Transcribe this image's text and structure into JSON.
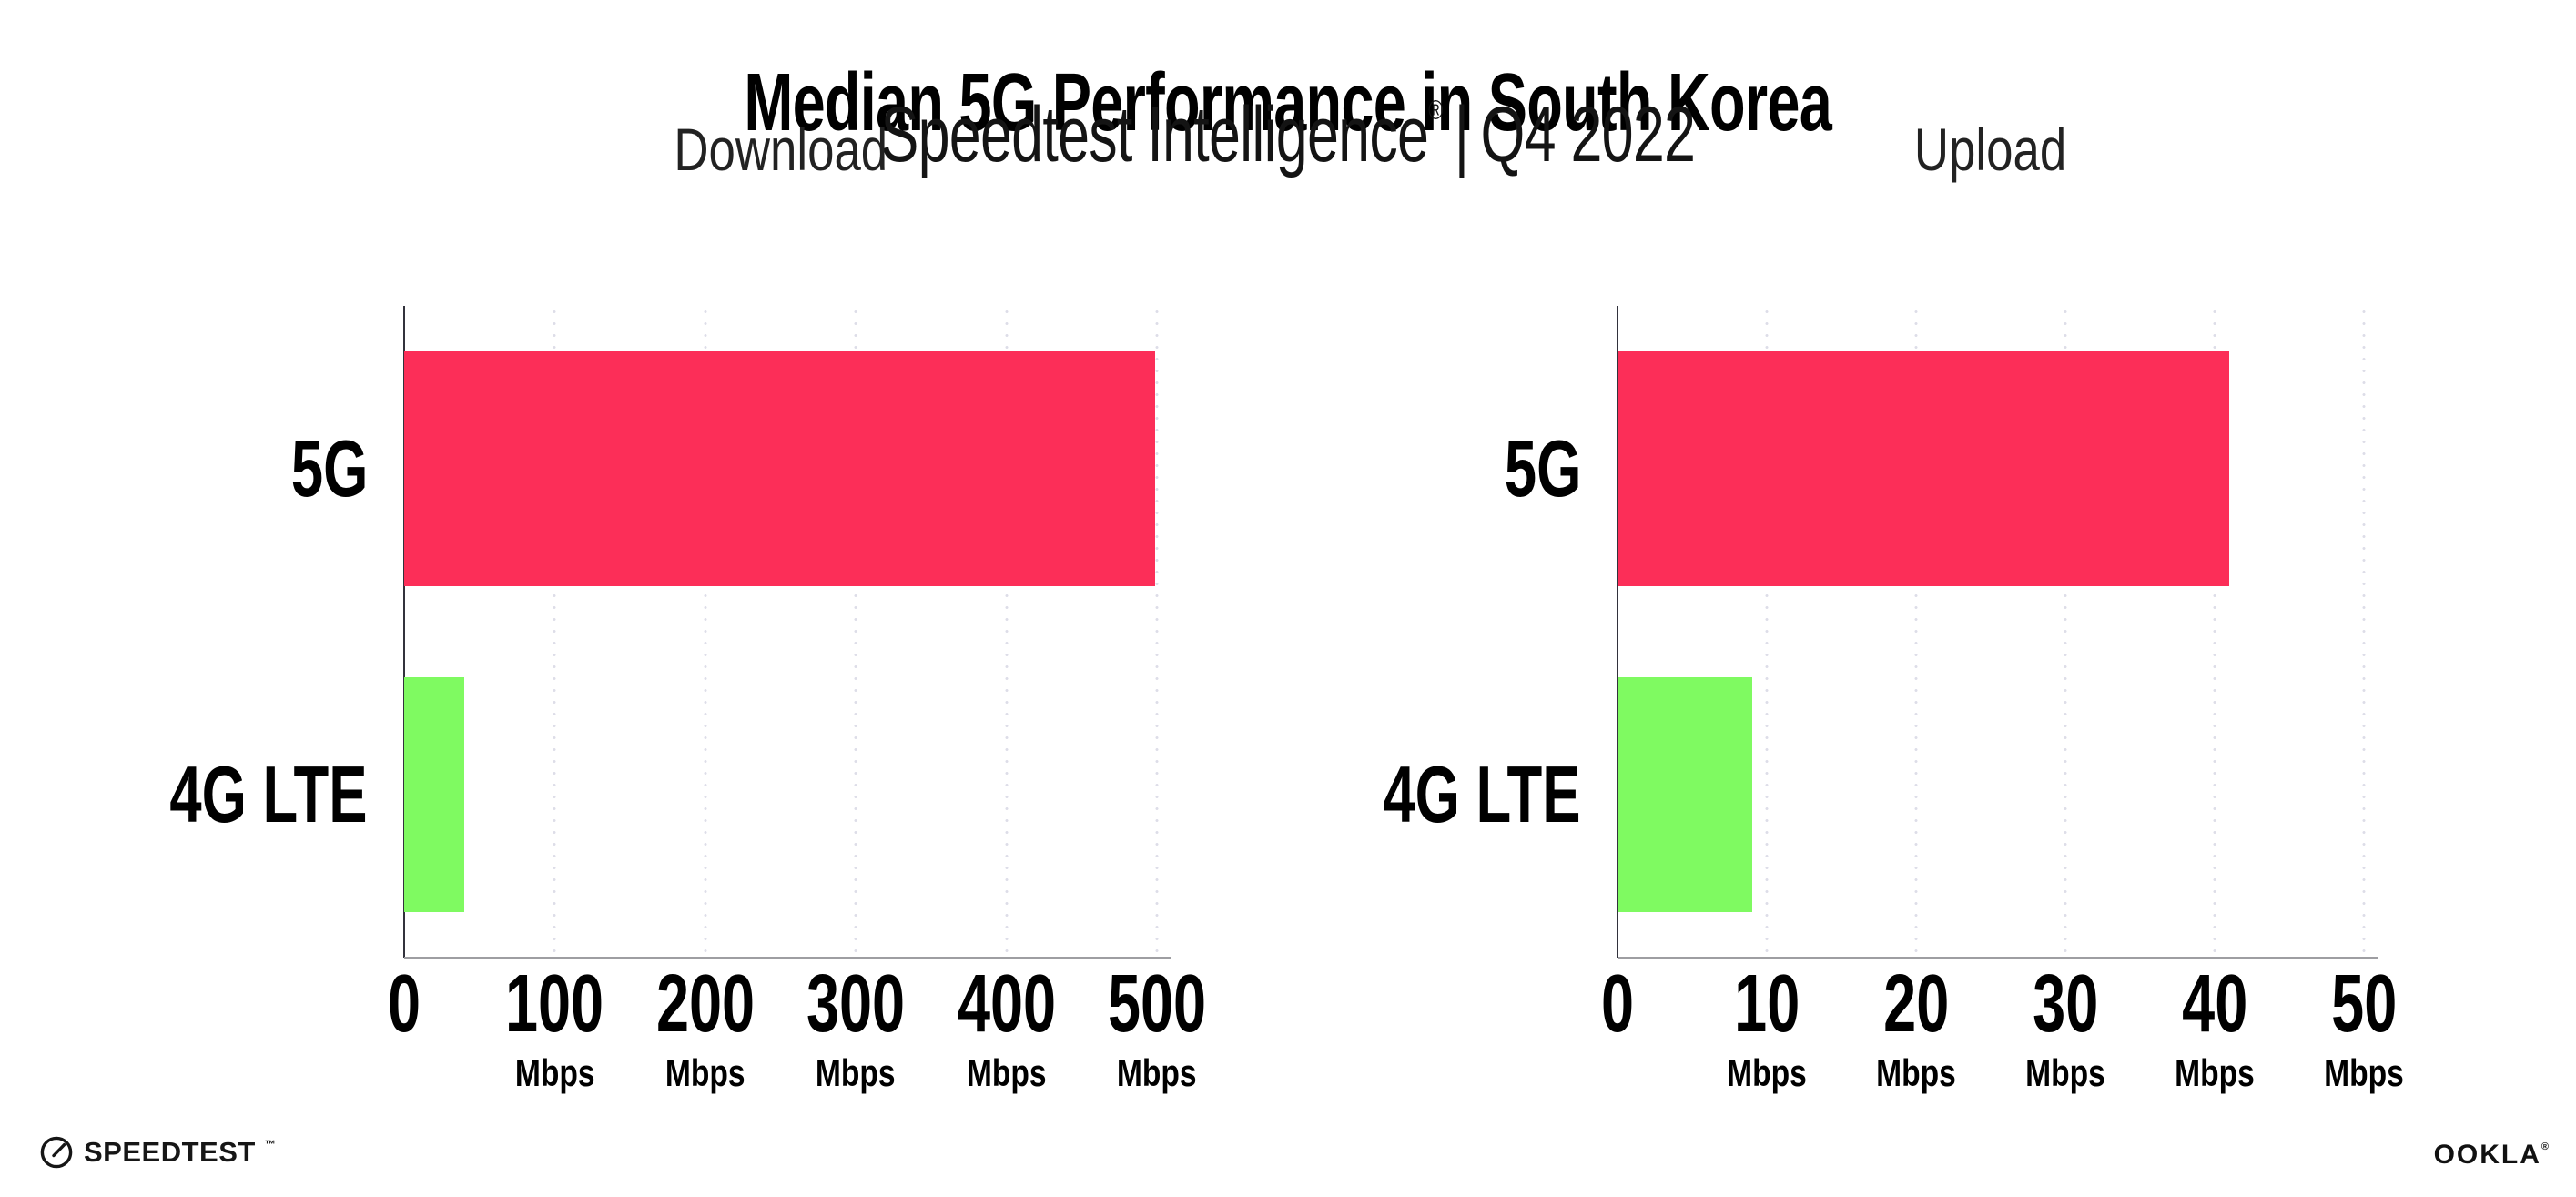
{
  "header": {
    "title": "Median 5G Performance in South Korea",
    "subtitle_brand": "Speedtest Intelligence",
    "subtitle_reg": "®",
    "subtitle_divider": "|",
    "subtitle_period": "Q4 2022"
  },
  "chart_data": [
    {
      "type": "bar",
      "orientation": "horizontal",
      "title": "Download",
      "categories": [
        "5G",
        "4G LTE"
      ],
      "values": [
        499,
        40
      ],
      "unit": "Mbps",
      "xlim": [
        0,
        500
      ],
      "xticks": [
        0,
        100,
        200,
        300,
        400,
        500
      ],
      "series_colors": [
        "#fc2e58",
        "#7ffa61"
      ],
      "grid": "vertical-dotted",
      "legend": "none",
      "xlabel": "",
      "ylabel": ""
    },
    {
      "type": "bar",
      "orientation": "horizontal",
      "title": "Upload",
      "categories": [
        "5G",
        "4G LTE"
      ],
      "values": [
        41,
        9
      ],
      "unit": "Mbps",
      "xlim": [
        0,
        50
      ],
      "xticks": [
        0,
        10,
        20,
        30,
        40,
        50
      ],
      "series_colors": [
        "#fc2e58",
        "#7ffa61"
      ],
      "grid": "vertical-dotted",
      "legend": "none",
      "xlabel": "",
      "ylabel": ""
    }
  ],
  "footer": {
    "speedtest_logo_text": "SPEEDTEST",
    "speedtest_tm": "™",
    "ookla_logo_text": "OOKLA",
    "ookla_reg": "®"
  },
  "colors": {
    "bar_5g": "#fc2e58",
    "bar_4g_lte": "#7ffa61",
    "grid_dot": "#dddde8",
    "axis_line": "#32323c",
    "baseline": "#9e9ea2",
    "title_text": "#000000",
    "chart_title_text": "#222222"
  }
}
